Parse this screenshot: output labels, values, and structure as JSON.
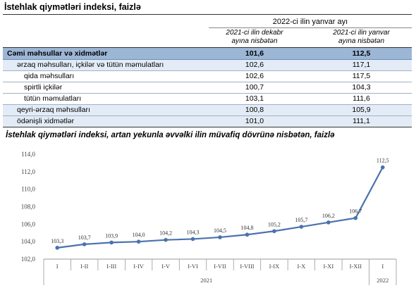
{
  "table": {
    "title": "İstehlak qiymətləri indeksi, faizlə",
    "group_header": "2022-ci ilin yanvar ayı",
    "col1_header": [
      "2021-ci ilin dekabr",
      "ayına nisbətən"
    ],
    "col2_header": [
      "2021-ci ilin yanvar",
      "ayına nisbətən"
    ],
    "rows": [
      {
        "label": "Cəmi məhsullar və xidmətlər",
        "v1": "101,6",
        "v2": "112,5"
      },
      {
        "label": "ərzaq məhsulları, içkilər və tütün məmulatları",
        "v1": "102,6",
        "v2": "117,1"
      },
      {
        "label": "qida məhsulları",
        "v1": "102,6",
        "v2": "117,5"
      },
      {
        "label": "spirtli içkilər",
        "v1": "100,7",
        "v2": "104,3"
      },
      {
        "label": "tütün məmulatları",
        "v1": "103,1",
        "v2": "111,6"
      },
      {
        "label": "qeyri-ərzaq məhsulları",
        "v1": "100,8",
        "v2": "105,9"
      },
      {
        "label": "ödənişli xidmətlər",
        "v1": "101,0",
        "v2": "111,1"
      }
    ]
  },
  "chart_data": {
    "type": "line",
    "title": "İstehlak qiymətləri indeksi, artan yekunla əvvəlki ilin müvafiq dövrünə nisbətən, faizlə",
    "categories": [
      "I",
      "I-II",
      "I-III",
      "I-IV",
      "I-V",
      "I-VI",
      "I-VII",
      "I-VIII",
      "I-IX",
      "I-X",
      "I-XI",
      "I-XII",
      "I"
    ],
    "category_groups": [
      {
        "label": "2021",
        "span": 12
      },
      {
        "label": "2022",
        "span": 1
      }
    ],
    "series": [
      {
        "values": [
          103.3,
          103.7,
          103.9,
          104.0,
          104.2,
          104.3,
          104.5,
          104.8,
          105.2,
          105.7,
          106.2,
          106.7,
          112.5
        ],
        "labels": [
          "103,3",
          "103,7",
          "103,9",
          "104,0",
          "104,2",
          "104,3",
          "104,5",
          "104,8",
          "105,2",
          "105,7",
          "106,2",
          "106,7",
          "112,5"
        ],
        "color": "#4a72ad"
      }
    ],
    "yticks": [
      "102,0",
      "104,0",
      "106,0",
      "108,0",
      "110,0",
      "112,0",
      "114,0"
    ],
    "ylim": [
      102,
      114
    ],
    "grid": false,
    "legend": "none"
  }
}
